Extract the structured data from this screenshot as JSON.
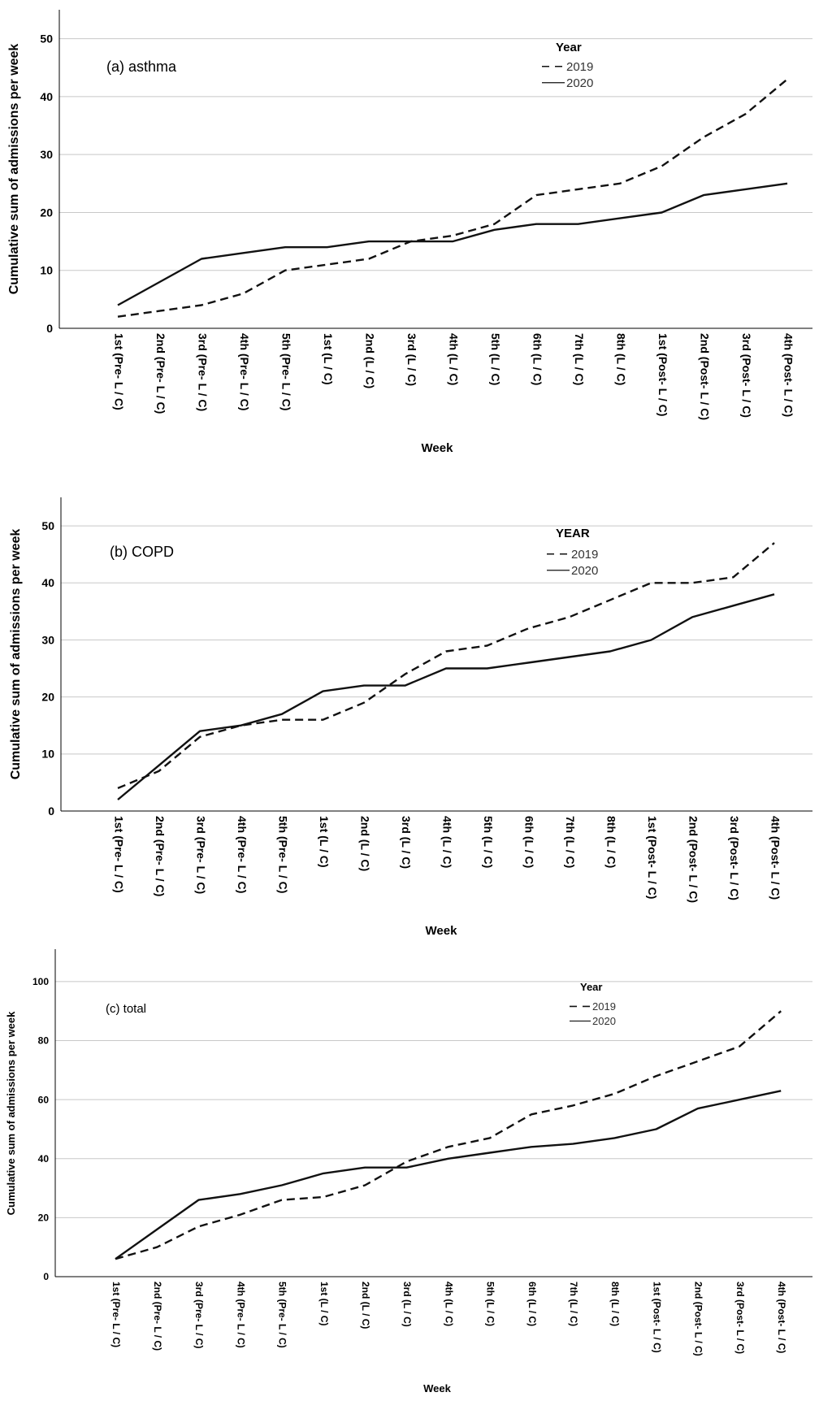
{
  "chart_data": [
    {
      "type": "line",
      "title": "(a) asthma",
      "xlabel": "Week",
      "ylabel": "Cumulative sum of admissions per week",
      "ylim": [
        0,
        55
      ],
      "yticks": [
        0,
        10,
        20,
        30,
        40,
        50
      ],
      "grid": true,
      "legend_title": "Year",
      "legend_position": "top-right",
      "categories": [
        "1st (Pre- L / C)",
        "2nd (Pre- L / C)",
        "3rd (Pre- L / C)",
        "4th (Pre- L / C)",
        "5th (Pre- L / C)",
        "1st (L / C)",
        "2nd (L / C)",
        "3rd (L / C)",
        "4th (L / C)",
        "5th (L / C)",
        "6th (L / C)",
        "7th (L / C)",
        "8th (L / C)",
        "1st (Post- L / C)",
        "2nd (Post- L / C)",
        "3rd (Post- L / C)",
        "4th (Post- L / C)"
      ],
      "series": [
        {
          "name": "2019",
          "style": "dashed",
          "values": [
            2,
            3,
            4,
            6,
            10,
            11,
            12,
            15,
            16,
            18,
            23,
            24,
            25,
            28,
            33,
            37,
            43
          ]
        },
        {
          "name": "2020",
          "style": "solid",
          "values": [
            4,
            8,
            12,
            13,
            14,
            14,
            15,
            15,
            15,
            17,
            18,
            18,
            19,
            20,
            23,
            24,
            25
          ]
        }
      ]
    },
    {
      "type": "line",
      "title": "(b) COPD",
      "xlabel": "Week",
      "ylabel": "Cumulative sum of admissions per week",
      "ylim": [
        0,
        55
      ],
      "yticks": [
        0,
        10,
        20,
        30,
        40,
        50
      ],
      "grid": true,
      "legend_title": "YEAR",
      "legend_position": "top-right",
      "categories": [
        "1st (Pre- L / C)",
        "2nd (Pre- L / C)",
        "3rd (Pre- L / C)",
        "4th (Pre- L / C)",
        "5th (Pre- L / C)",
        "1st (L / C)",
        "2nd (L / C)",
        "3rd (L / C)",
        "4th (L / C)",
        "5th (L / C)",
        "6th (L / C)",
        "7th (L / C)",
        "8th (L / C)",
        "1st (Post- L / C)",
        "2nd (Post- L / C)",
        "3rd (Post- L / C)",
        "4th (Post- L / C)"
      ],
      "series": [
        {
          "name": "2019",
          "style": "dashed",
          "values": [
            4,
            7,
            13,
            15,
            16,
            16,
            19,
            24,
            28,
            29,
            32,
            34,
            37,
            40,
            40,
            41,
            47
          ]
        },
        {
          "name": "2020",
          "style": "solid",
          "values": [
            2,
            8,
            14,
            15,
            17,
            21,
            22,
            22,
            25,
            25,
            26,
            27,
            28,
            30,
            34,
            36,
            38
          ]
        }
      ]
    },
    {
      "type": "line",
      "title": "(c) total",
      "xlabel": "Week",
      "ylabel": "Cumulative sum of admissions per week",
      "ylim": [
        0,
        111
      ],
      "yticks": [
        0,
        20,
        40,
        60,
        80,
        100
      ],
      "grid": true,
      "legend_title": "Year",
      "legend_position": "top-right",
      "categories": [
        "1st (Pre- L / C)",
        "2nd (Pre- L / C)",
        "3rd (Pre- L / C)",
        "4th (Pre- L / C)",
        "5th (Pre- L / C)",
        "1st (L / C)",
        "2nd (L / C)",
        "3rd (L / C)",
        "4th (L / C)",
        "5th (L / C)",
        "6th (L / C)",
        "7th (L / C)",
        "8th (L / C)",
        "1st (Post- L / C)",
        "2nd (Post- L / C)",
        "3rd (Post- L / C)",
        "4th (Post- L / C)"
      ],
      "series": [
        {
          "name": "2019",
          "style": "dashed",
          "values": [
            6,
            10,
            17,
            21,
            26,
            27,
            31,
            39,
            44,
            47,
            55,
            58,
            62,
            68,
            73,
            78,
            90
          ]
        },
        {
          "name": "2020",
          "style": "solid",
          "values": [
            6,
            16,
            26,
            28,
            31,
            35,
            37,
            37,
            40,
            42,
            44,
            45,
            47,
            50,
            57,
            60,
            63
          ]
        }
      ]
    }
  ]
}
